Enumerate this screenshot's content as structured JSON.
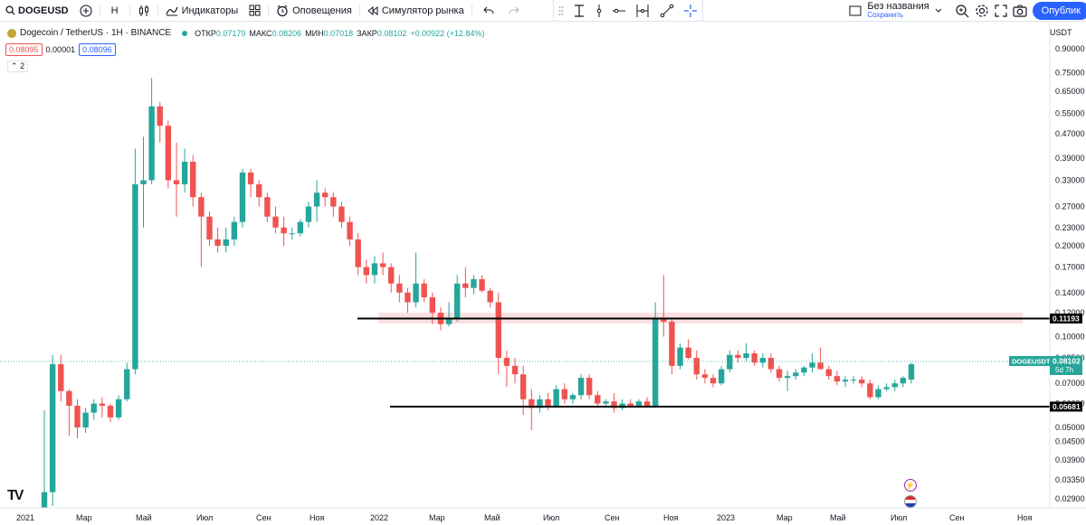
{
  "toolbar": {
    "symbol": "DOGEUSD",
    "interval": "H",
    "indicators_label": "Индикаторы",
    "alerts_label": "Оповещения",
    "replay_label": "Симулятор рынка",
    "layout_name": "Без названия",
    "layout_saved": "Сохранить",
    "publish_label": "Опублик"
  },
  "legend": {
    "title": "Dogecoin / TetherUS · 1H · BINANCE",
    "open_label": "ОТКР",
    "open": "0.07179",
    "high_label": "МАКС",
    "high": "0.08206",
    "low_label": "МИН",
    "low": "0.07018",
    "close_label": "ЗАКР",
    "close": "0.08102",
    "change": "+0.00922 (+12.84%)",
    "sell_price": "0.08095",
    "spread": "0.00001",
    "buy_price": "0.08096",
    "indicator_count": "2"
  },
  "price_scale": {
    "currency": "USDT",
    "ticks": [
      "0.90000",
      "0.75000",
      "0.65000",
      "0.55000",
      "0.47000",
      "0.39000",
      "0.33000",
      "0.27000",
      "0.23000",
      "0.20000",
      "0.17000",
      "0.14000",
      "0.12000",
      "0.10000",
      "0.08500",
      "0.07000",
      "0.06000",
      "0.05000",
      "0.04500",
      "0.03900",
      "0.03350",
      "0.02900"
    ],
    "resistance_label": "0.11193",
    "support_label": "0.05681",
    "current_label": "0.08102",
    "countdown": "5d 7h",
    "symbol_tag": "DOGEUSDT"
  },
  "time_scale": {
    "ticks": [
      "2021",
      "Мар",
      "Май",
      "Июл",
      "Сен",
      "Ноя",
      "2022",
      "Мар",
      "Май",
      "Июл",
      "Сен",
      "Ноя",
      "2023",
      "Мар",
      "Май",
      "Июл",
      "Сен",
      "Ноя"
    ]
  },
  "colors": {
    "up": "#26a69a",
    "down": "#ef5350",
    "accent": "#2962ff",
    "zone": "#fbe0e3"
  },
  "chart_data": {
    "type": "candlestick",
    "timeframe": "weekly",
    "y_scale": "log",
    "ylim": [
      0.027,
      0.95
    ],
    "levels": [
      0.11193,
      0.05681
    ],
    "zone": [
      0.1086,
      0.1185
    ],
    "candles": [
      [
        0.0047,
        0.057,
        0.0047,
        0.0305
      ],
      [
        0.0305,
        0.087,
        0.026,
        0.081
      ],
      [
        0.081,
        0.087,
        0.061,
        0.066
      ],
      [
        0.066,
        0.067,
        0.047,
        0.059
      ],
      [
        0.059,
        0.062,
        0.046,
        0.05
      ],
      [
        0.05,
        0.058,
        0.048,
        0.056
      ],
      [
        0.056,
        0.062,
        0.053,
        0.06
      ],
      [
        0.06,
        0.063,
        0.054,
        0.059
      ],
      [
        0.059,
        0.06,
        0.052,
        0.054
      ],
      [
        0.054,
        0.064,
        0.053,
        0.062
      ],
      [
        0.062,
        0.082,
        0.061,
        0.078
      ],
      [
        0.078,
        0.42,
        0.075,
        0.32
      ],
      [
        0.32,
        0.46,
        0.23,
        0.33
      ],
      [
        0.33,
        0.72,
        0.32,
        0.58
      ],
      [
        0.58,
        0.6,
        0.44,
        0.5
      ],
      [
        0.5,
        0.52,
        0.31,
        0.33
      ],
      [
        0.33,
        0.44,
        0.25,
        0.32
      ],
      [
        0.32,
        0.42,
        0.3,
        0.38
      ],
      [
        0.38,
        0.4,
        0.27,
        0.29
      ],
      [
        0.29,
        0.3,
        0.17,
        0.25
      ],
      [
        0.25,
        0.26,
        0.2,
        0.21
      ],
      [
        0.21,
        0.23,
        0.19,
        0.2
      ],
      [
        0.2,
        0.23,
        0.19,
        0.21
      ],
      [
        0.21,
        0.25,
        0.2,
        0.24
      ],
      [
        0.24,
        0.36,
        0.23,
        0.35
      ],
      [
        0.35,
        0.36,
        0.29,
        0.32
      ],
      [
        0.32,
        0.33,
        0.27,
        0.29
      ],
      [
        0.29,
        0.3,
        0.24,
        0.25
      ],
      [
        0.25,
        0.27,
        0.22,
        0.23
      ],
      [
        0.23,
        0.25,
        0.2,
        0.22
      ],
      [
        0.22,
        0.23,
        0.21,
        0.22
      ],
      [
        0.22,
        0.245,
        0.215,
        0.24
      ],
      [
        0.24,
        0.28,
        0.23,
        0.27
      ],
      [
        0.27,
        0.33,
        0.24,
        0.3
      ],
      [
        0.3,
        0.31,
        0.27,
        0.29
      ],
      [
        0.29,
        0.3,
        0.25,
        0.27
      ],
      [
        0.27,
        0.28,
        0.23,
        0.24
      ],
      [
        0.24,
        0.25,
        0.2,
        0.21
      ],
      [
        0.21,
        0.22,
        0.16,
        0.17
      ],
      [
        0.17,
        0.18,
        0.15,
        0.16
      ],
      [
        0.16,
        0.185,
        0.15,
        0.175
      ],
      [
        0.175,
        0.19,
        0.16,
        0.17
      ],
      [
        0.17,
        0.175,
        0.14,
        0.15
      ],
      [
        0.15,
        0.16,
        0.13,
        0.14
      ],
      [
        0.14,
        0.145,
        0.12,
        0.13
      ],
      [
        0.13,
        0.19,
        0.125,
        0.15
      ],
      [
        0.15,
        0.155,
        0.13,
        0.135
      ],
      [
        0.135,
        0.14,
        0.11,
        0.12
      ],
      [
        0.12,
        0.125,
        0.105,
        0.11
      ],
      [
        0.11,
        0.13,
        0.108,
        0.115
      ],
      [
        0.115,
        0.16,
        0.112,
        0.15
      ],
      [
        0.15,
        0.17,
        0.135,
        0.145
      ],
      [
        0.145,
        0.16,
        0.138,
        0.155
      ],
      [
        0.155,
        0.16,
        0.14,
        0.142
      ],
      [
        0.142,
        0.145,
        0.125,
        0.13
      ],
      [
        0.13,
        0.14,
        0.075,
        0.085
      ],
      [
        0.085,
        0.09,
        0.068,
        0.08
      ],
      [
        0.08,
        0.085,
        0.07,
        0.075
      ],
      [
        0.075,
        0.08,
        0.055,
        0.062
      ],
      [
        0.062,
        0.067,
        0.049,
        0.058
      ],
      [
        0.058,
        0.064,
        0.056,
        0.062
      ],
      [
        0.062,
        0.065,
        0.057,
        0.059
      ],
      [
        0.059,
        0.069,
        0.058,
        0.067
      ],
      [
        0.067,
        0.07,
        0.06,
        0.062
      ],
      [
        0.062,
        0.065,
        0.06,
        0.064
      ],
      [
        0.064,
        0.075,
        0.062,
        0.073
      ],
      [
        0.073,
        0.075,
        0.062,
        0.064
      ],
      [
        0.064,
        0.066,
        0.058,
        0.06
      ],
      [
        0.06,
        0.062,
        0.058,
        0.061
      ],
      [
        0.061,
        0.065,
        0.056,
        0.058
      ],
      [
        0.058,
        0.062,
        0.057,
        0.06
      ],
      [
        0.06,
        0.062,
        0.058,
        0.059
      ],
      [
        0.059,
        0.062,
        0.058,
        0.061
      ],
      [
        0.061,
        0.063,
        0.058,
        0.059
      ],
      [
        0.059,
        0.13,
        0.058,
        0.115
      ],
      [
        0.115,
        0.16,
        0.1,
        0.112
      ],
      [
        0.112,
        0.115,
        0.075,
        0.08
      ],
      [
        0.08,
        0.095,
        0.078,
        0.092
      ],
      [
        0.092,
        0.098,
        0.084,
        0.085
      ],
      [
        0.085,
        0.09,
        0.072,
        0.075
      ],
      [
        0.075,
        0.078,
        0.07,
        0.073
      ],
      [
        0.073,
        0.075,
        0.068,
        0.07
      ],
      [
        0.07,
        0.08,
        0.069,
        0.078
      ],
      [
        0.078,
        0.09,
        0.076,
        0.087
      ],
      [
        0.087,
        0.09,
        0.082,
        0.085
      ],
      [
        0.085,
        0.095,
        0.083,
        0.088
      ],
      [
        0.088,
        0.09,
        0.08,
        0.082
      ],
      [
        0.082,
        0.088,
        0.079,
        0.085
      ],
      [
        0.085,
        0.088,
        0.076,
        0.078
      ],
      [
        0.078,
        0.08,
        0.071,
        0.073
      ],
      [
        0.073,
        0.077,
        0.066,
        0.074
      ],
      [
        0.074,
        0.078,
        0.072,
        0.076
      ],
      [
        0.076,
        0.08,
        0.074,
        0.079
      ],
      [
        0.079,
        0.088,
        0.076,
        0.082
      ],
      [
        0.082,
        0.092,
        0.078,
        0.078
      ],
      [
        0.078,
        0.08,
        0.072,
        0.074
      ],
      [
        0.074,
        0.077,
        0.069,
        0.071
      ],
      [
        0.071,
        0.074,
        0.068,
        0.072
      ],
      [
        0.072,
        0.074,
        0.07,
        0.072
      ],
      [
        0.072,
        0.074,
        0.068,
        0.07
      ],
      [
        0.07,
        0.072,
        0.062,
        0.063
      ],
      [
        0.063,
        0.069,
        0.062,
        0.067
      ],
      [
        0.067,
        0.07,
        0.066,
        0.068
      ],
      [
        0.068,
        0.072,
        0.066,
        0.07
      ],
      [
        0.07,
        0.074,
        0.068,
        0.073
      ],
      [
        0.072,
        0.082,
        0.07,
        0.081
      ]
    ]
  }
}
